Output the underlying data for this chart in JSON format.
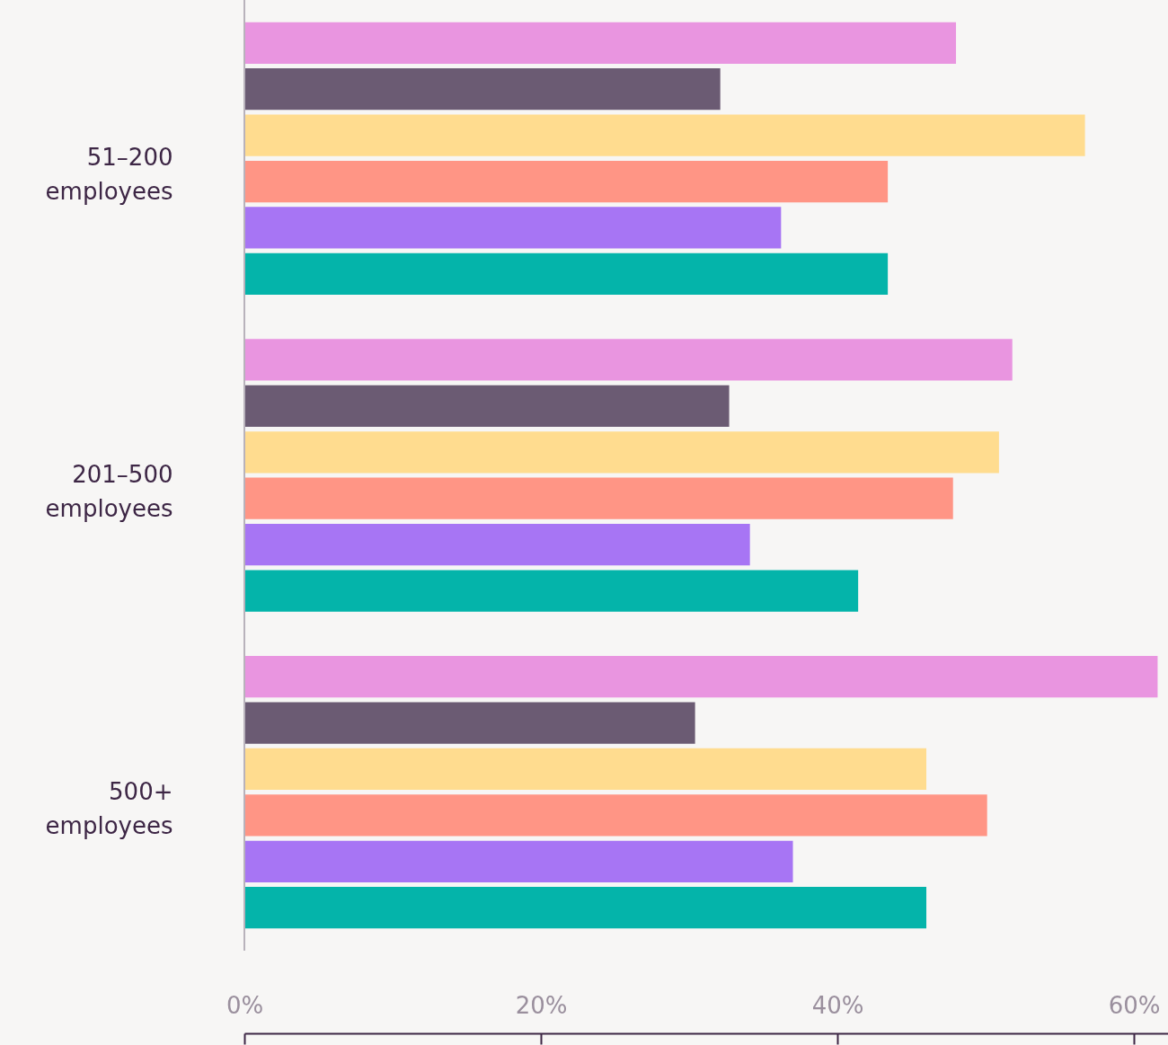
{
  "chart_data": {
    "type": "bar",
    "orientation": "horizontal",
    "categories": [
      "51–200 employees",
      "201–500 employees",
      "500+ employees"
    ],
    "series": [
      {
        "color": "#e995e0",
        "values": [
          48,
          51.8,
          61.6
        ]
      },
      {
        "color": "#6b5b73",
        "values": [
          32.1,
          32.7,
          30.4
        ]
      },
      {
        "color": "#ffdc8f",
        "values": [
          56.7,
          50.9,
          46
        ]
      },
      {
        "color": "#ff9585",
        "values": [
          43.4,
          47.8,
          50.1
        ]
      },
      {
        "color": "#a775f4",
        "values": [
          36.2,
          34.1,
          37
        ]
      },
      {
        "color": "#04b4aa",
        "values": [
          43.4,
          41.4,
          46
        ]
      }
    ],
    "xlim": [
      0,
      62.3
    ],
    "xticks": [
      {
        "value": 0,
        "label": "0%"
      },
      {
        "value": 20,
        "label": "20%"
      },
      {
        "value": 40,
        "label": "40%"
      },
      {
        "value": 60,
        "label": "60%"
      }
    ],
    "grid": false
  }
}
